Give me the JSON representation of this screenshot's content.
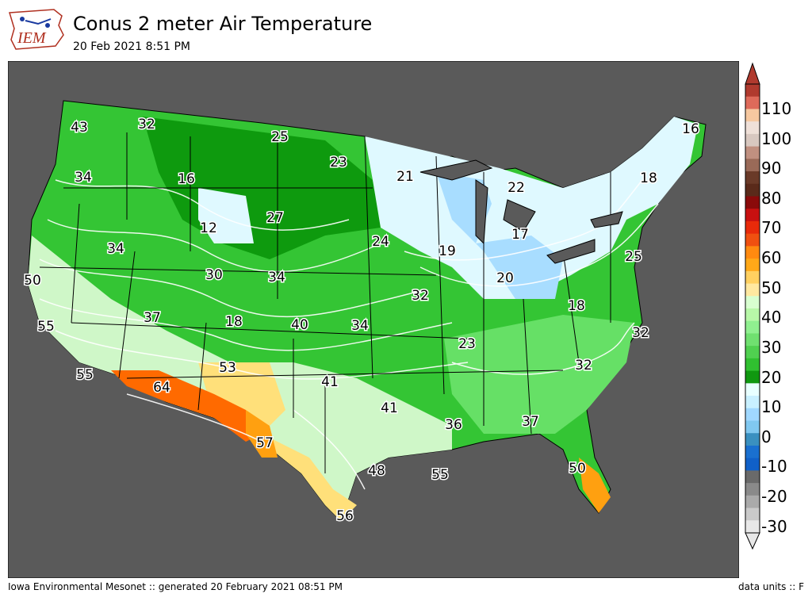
{
  "header": {
    "title": "Conus 2 meter Air Temperature",
    "subtitle": "20 Feb 2021 8:51 PM",
    "logo_text": "IEM"
  },
  "footer": {
    "left": "Iowa Environmental Mesonet :: generated 20 February 2021 08:51 PM",
    "right": "data units :: F"
  },
  "colors": {
    "ocean": "#5a5a5a",
    "very_cold": "#dff9ff",
    "cold": "#a8ddff",
    "cool_green_dark": "#0e9a0e",
    "green": "#34c534",
    "green_light": "#66e066",
    "green_pale": "#a9f0a9",
    "pale": "#cff7c8",
    "yellow": "#ffe07a",
    "orange": "#ffa010",
    "hot": "#ff6a00"
  },
  "station_labels": [
    {
      "text": "43"
    },
    {
      "text": "32"
    },
    {
      "text": "25"
    },
    {
      "text": "23"
    },
    {
      "text": "21"
    },
    {
      "text": "22"
    },
    {
      "text": "18"
    },
    {
      "text": "16"
    },
    {
      "text": "34"
    },
    {
      "text": "16"
    },
    {
      "text": "12"
    },
    {
      "text": "27"
    },
    {
      "text": "24"
    },
    {
      "text": "19"
    },
    {
      "text": "17"
    },
    {
      "text": "25"
    },
    {
      "text": "34"
    },
    {
      "text": "30"
    },
    {
      "text": "34"
    },
    {
      "text": "32"
    },
    {
      "text": "20"
    },
    {
      "text": "18"
    },
    {
      "text": "50"
    },
    {
      "text": "55"
    },
    {
      "text": "37"
    },
    {
      "text": "18"
    },
    {
      "text": "40"
    },
    {
      "text": "34"
    },
    {
      "text": "23"
    },
    {
      "text": "32"
    },
    {
      "text": "55"
    },
    {
      "text": "53"
    },
    {
      "text": "64"
    },
    {
      "text": "41"
    },
    {
      "text": "32"
    },
    {
      "text": "41"
    },
    {
      "text": "36"
    },
    {
      "text": "37"
    },
    {
      "text": "57"
    },
    {
      "text": "48"
    },
    {
      "text": "55"
    },
    {
      "text": "50"
    },
    {
      "text": "56"
    }
  ],
  "colorbar": {
    "ticks": [
      "110",
      "100",
      "90",
      "80",
      "70",
      "60",
      "50",
      "40",
      "30",
      "20",
      "10",
      "0",
      "-10",
      "-20",
      "-30"
    ],
    "segments": [
      "#b03a2e",
      "#de6a5a",
      "#f6c8a0",
      "#efe0d8",
      "#d8c8c0",
      "#c09080",
      "#9a6a58",
      "#6a3a28",
      "#5a2a1a",
      "#8a0a0a",
      "#c81010",
      "#e82a0a",
      "#f05010",
      "#ff8a10",
      "#ffa818",
      "#ffd060",
      "#ffe8a0",
      "#d8ffd0",
      "#b8f8a8",
      "#90f090",
      "#70e070",
      "#50d050",
      "#30c030",
      "#109810",
      "#e8ffff",
      "#c8f0ff",
      "#a0d8ff",
      "#80c8f0",
      "#3a90c0",
      "#1a70d0",
      "#1060c8",
      "#6a6a6a",
      "#8a8a8a",
      "#aaaaaa",
      "#cacaca",
      "#e8e8e8"
    ]
  }
}
